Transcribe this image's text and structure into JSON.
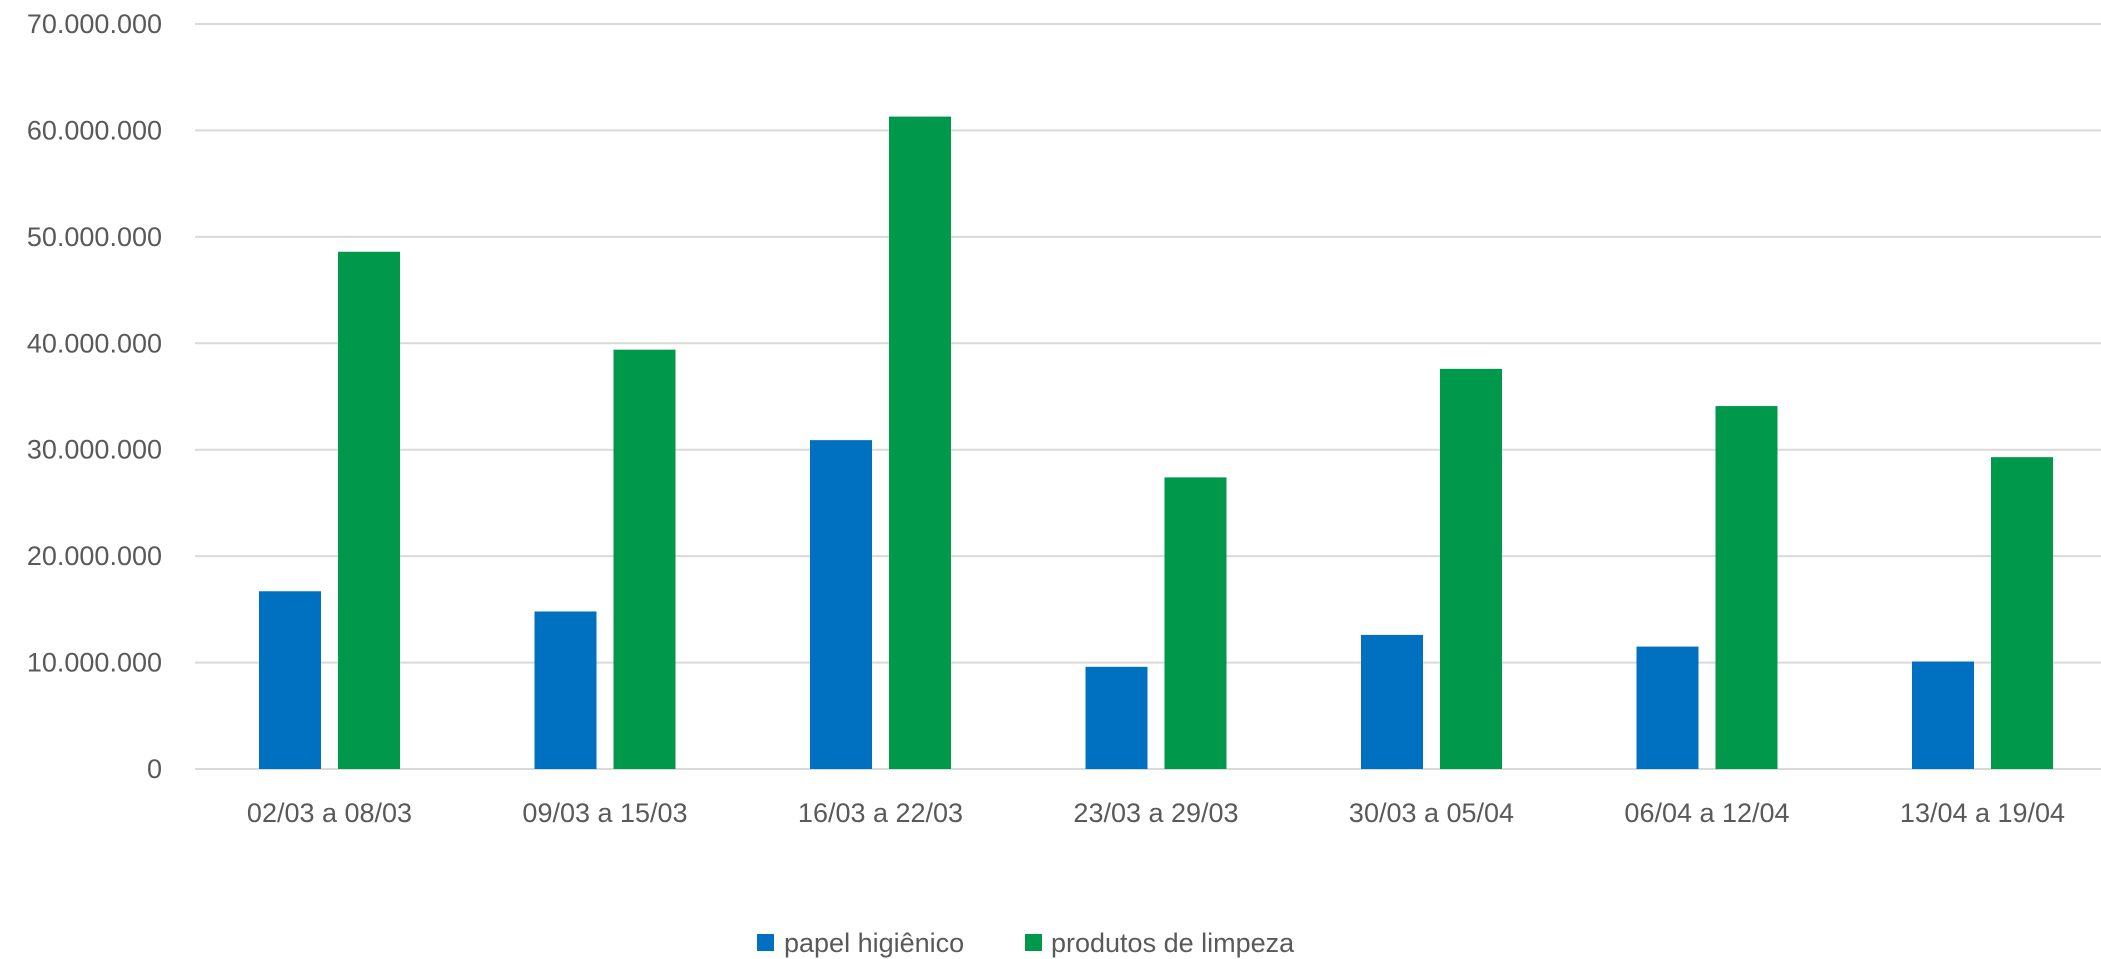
{
  "chart_data": {
    "type": "bar",
    "title": "",
    "xlabel": "",
    "ylabel": "",
    "ylim": [
      0,
      70000000
    ],
    "y_ticks": [
      0,
      10000000,
      20000000,
      30000000,
      40000000,
      50000000,
      60000000,
      70000000
    ],
    "y_tick_labels": [
      "0",
      "10.000.000",
      "20.000.000",
      "30.000.000",
      "40.000.000",
      "50.000.000",
      "60.000.000",
      "70.000.000"
    ],
    "grid": true,
    "legend_position": "bottom-center",
    "categories": [
      "02/03 a 08/03",
      "09/03 a 15/03",
      "16/03 a 22/03",
      "23/03 a 29/03",
      "30/03 a 05/04",
      "06/04 a 12/04",
      "13/04 a 19/04"
    ],
    "series": [
      {
        "name": "papel higiênico",
        "color": "#0070C0",
        "values": [
          16700000,
          14800000,
          30900000,
          9600000,
          12600000,
          11500000,
          10100000
        ]
      },
      {
        "name": "produtos de limpeza",
        "color": "#00994C",
        "values": [
          48600000,
          39400000,
          61300000,
          27400000,
          37600000,
          34100000,
          29300000
        ]
      }
    ]
  }
}
